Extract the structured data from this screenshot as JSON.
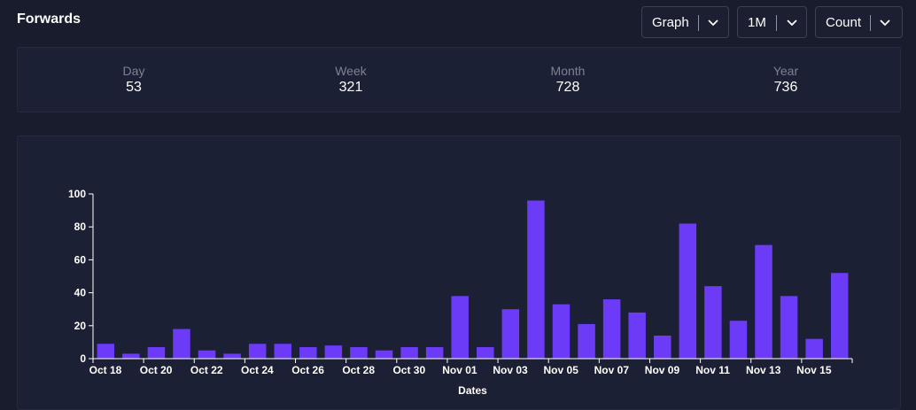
{
  "header": {
    "title": "Forwards"
  },
  "controls": {
    "view": {
      "label": "Graph"
    },
    "range": {
      "label": "1M"
    },
    "metric": {
      "label": "Count"
    }
  },
  "stats": [
    {
      "label": "Day",
      "value": "53"
    },
    {
      "label": "Week",
      "value": "321"
    },
    {
      "label": "Month",
      "value": "728"
    },
    {
      "label": "Year",
      "value": "736"
    }
  ],
  "colors": {
    "bar": "#6c3bf5",
    "background": "#181c2d",
    "panel": "#1c2034"
  },
  "chart_data": {
    "type": "bar",
    "xlabel": "Dates",
    "ylabel": "",
    "ylim": [
      0,
      100
    ],
    "yticks": [
      0,
      20,
      40,
      60,
      80,
      100
    ],
    "grid": false,
    "categories": [
      "Oct 18",
      "Oct 19",
      "Oct 20",
      "Oct 21",
      "Oct 22",
      "Oct 23",
      "Oct 24",
      "Oct 25",
      "Oct 26",
      "Oct 27",
      "Oct 28",
      "Oct 29",
      "Oct 30",
      "Oct 31",
      "Nov 01",
      "Nov 02",
      "Nov 03",
      "Nov 04",
      "Nov 05",
      "Nov 06",
      "Nov 07",
      "Nov 08",
      "Nov 09",
      "Nov 10",
      "Nov 11",
      "Nov 12",
      "Nov 13",
      "Nov 14",
      "Nov 15",
      "Nov 16"
    ],
    "tick_labels": [
      "Oct 18",
      "Oct 20",
      "Oct 22",
      "Oct 24",
      "Oct 26",
      "Oct 28",
      "Oct 30",
      "Nov 01",
      "Nov 03",
      "Nov 05",
      "Nov 07",
      "Nov 09",
      "Nov 11",
      "Nov 13",
      "Nov 15"
    ],
    "values": [
      9,
      3,
      7,
      18,
      5,
      3,
      9,
      9,
      7,
      8,
      7,
      5,
      7,
      7,
      38,
      7,
      30,
      96,
      33,
      21,
      36,
      28,
      14,
      82,
      44,
      23,
      69,
      38,
      12,
      52
    ]
  }
}
